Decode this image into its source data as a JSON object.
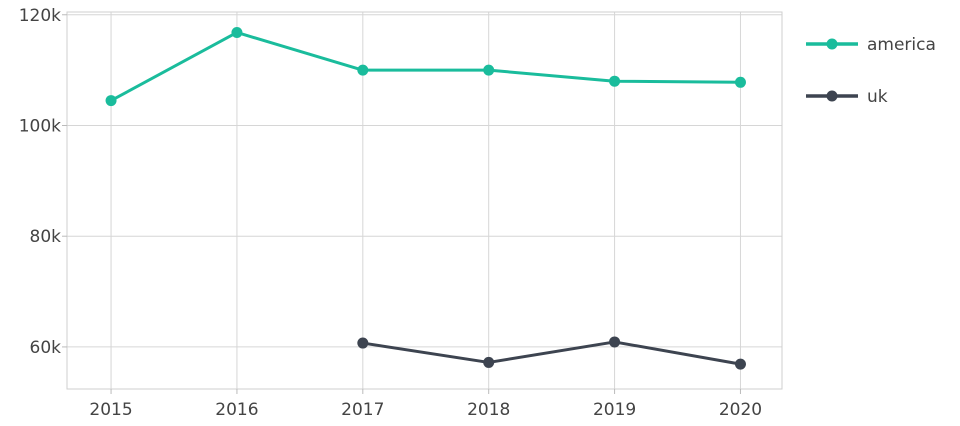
{
  "chart_data": {
    "type": "line",
    "title": "",
    "xlabel": "",
    "ylabel": "",
    "x": [
      2015,
      2016,
      2017,
      2018,
      2019,
      2020
    ],
    "x_tick_labels": [
      "2015",
      "2016",
      "2017",
      "2018",
      "2019",
      "2020"
    ],
    "xlim": [
      2014.65,
      2020.33
    ],
    "ylim": [
      52400,
      120500
    ],
    "y_ticks": [
      60000,
      80000,
      100000,
      120000
    ],
    "y_tick_labels": [
      "60k",
      "80k",
      "100k",
      "120k"
    ],
    "grid": true,
    "legend_position": "top-right",
    "series": [
      {
        "name": "america",
        "color": "#1abc9c",
        "values": [
          104500,
          116800,
          110000,
          110000,
          108000,
          107800
        ]
      },
      {
        "name": "uk",
        "color": "#3d4450",
        "values": [
          null,
          null,
          60700,
          57200,
          60900,
          56900
        ]
      }
    ]
  }
}
